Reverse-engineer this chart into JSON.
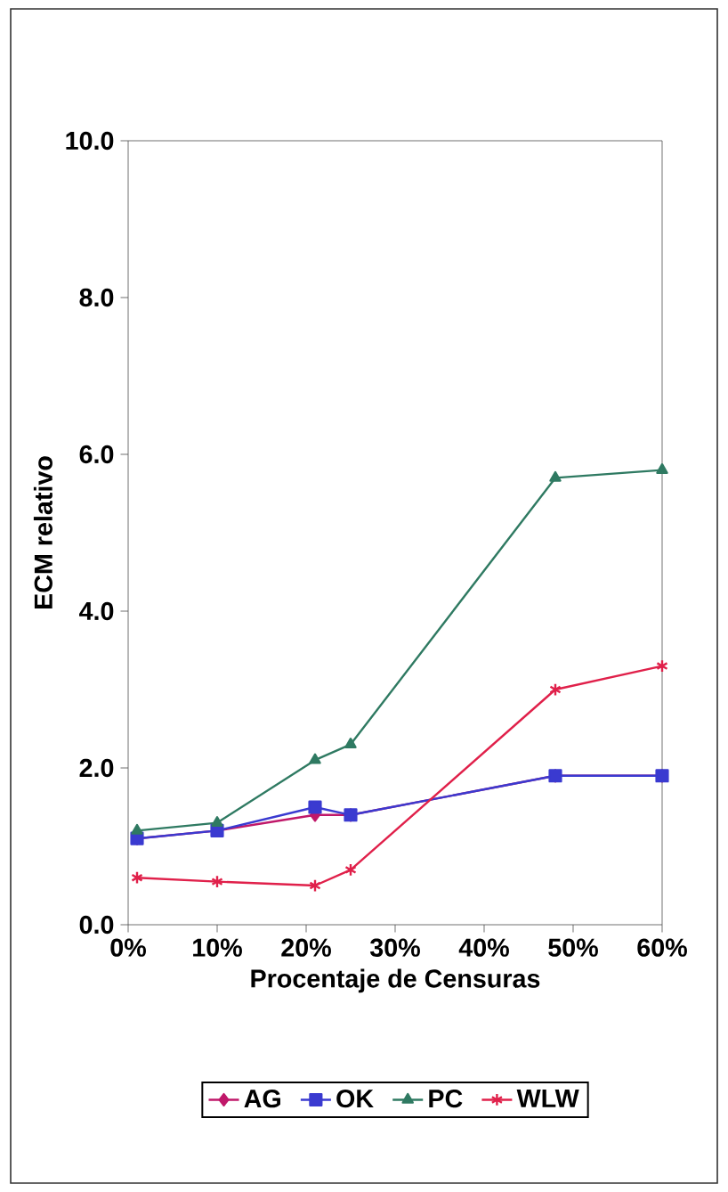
{
  "chart_data": {
    "type": "line",
    "xlabel": "Procentaje de Censuras",
    "ylabel": "ECM relativo",
    "x": [
      1,
      10,
      21,
      25,
      48,
      60
    ],
    "series": [
      {
        "name": "AG",
        "color": "#c0186a",
        "marker": "diamond",
        "values": [
          1.1,
          1.2,
          1.4,
          1.4,
          1.9,
          1.9
        ]
      },
      {
        "name": "OK",
        "color": "#3a3ad0",
        "marker": "square",
        "values": [
          1.1,
          1.2,
          1.5,
          1.4,
          1.9,
          1.9
        ]
      },
      {
        "name": "PC",
        "color": "#2f7a62",
        "marker": "triangle",
        "values": [
          1.2,
          1.3,
          2.1,
          2.3,
          5.7,
          5.8
        ]
      },
      {
        "name": "WLW",
        "color": "#e0204a",
        "marker": "cross",
        "values": [
          0.6,
          0.55,
          0.5,
          0.7,
          3.0,
          3.3
        ]
      }
    ],
    "xlim": [
      0,
      60
    ],
    "ylim": [
      0,
      10
    ],
    "xticks": [
      {
        "value": 0,
        "label": "0%"
      },
      {
        "value": 10,
        "label": "10%"
      },
      {
        "value": 20,
        "label": "20%"
      },
      {
        "value": 30,
        "label": "30%"
      },
      {
        "value": 40,
        "label": "40%"
      },
      {
        "value": 50,
        "label": "50%"
      },
      {
        "value": 60,
        "label": "60%"
      }
    ],
    "yticks": [
      {
        "value": 0,
        "label": "0.0"
      },
      {
        "value": 2,
        "label": "2.0"
      },
      {
        "value": 4,
        "label": "4.0"
      },
      {
        "value": 6,
        "label": "6.0"
      },
      {
        "value": 8,
        "label": "8.0"
      },
      {
        "value": 10,
        "label": "10.0"
      }
    ],
    "legend": "bottom",
    "grid": false
  }
}
